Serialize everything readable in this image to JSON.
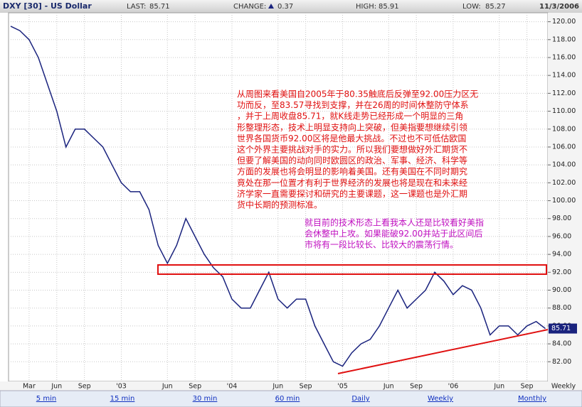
{
  "header": {
    "title": "DXY [30] - US Dollar",
    "stats": [
      {
        "label": "LAST:",
        "value": 85.71
      },
      {
        "label": "CHANGE:",
        "value": 0.37
      },
      {
        "label": "HIGH:",
        "value": 85.91
      },
      {
        "label": "LOW:",
        "value": 85.27
      }
    ],
    "date": "11/3/2006"
  },
  "chart_data": {
    "type": "line",
    "color": "#1a237e",
    "categories": [
      null,
      null,
      "Mar",
      null,
      null,
      "Jun",
      null,
      null,
      "Sep",
      null,
      null,
      null,
      "'03",
      null,
      null,
      null,
      null,
      "Jun",
      null,
      null,
      "Sep",
      null,
      null,
      null,
      "'04",
      null,
      null,
      null,
      null,
      "Jun",
      null,
      null,
      "Sep",
      null,
      null,
      null,
      "'05",
      null,
      null,
      null,
      null,
      "Jun",
      null,
      null,
      "Sep",
      null,
      null,
      null,
      "'06",
      null,
      null,
      null,
      null,
      "Jun",
      null,
      null,
      "Sep",
      null,
      null
    ],
    "values": [
      119.5,
      119,
      118,
      116,
      113,
      110,
      106,
      108,
      108,
      107,
      106,
      104,
      102,
      101,
      101,
      99,
      95,
      93,
      95,
      98,
      96,
      94,
      92.5,
      91.5,
      89,
      88,
      88,
      90,
      92,
      89,
      88,
      89,
      89,
      86,
      84,
      82,
      81.5,
      83,
      84,
      84.5,
      86,
      88,
      90,
      88,
      89,
      90,
      92,
      91,
      89.5,
      90.5,
      90,
      88,
      85,
      86,
      86,
      85,
      86,
      86.5,
      85.71
    ],
    "ylim": [
      79.8,
      121.0
    ],
    "yticks": [
      {
        "value": 82,
        "label": "82.00"
      },
      {
        "value": 84,
        "label": "84.00"
      },
      {
        "value": 86,
        "label": "86.00"
      },
      {
        "value": 88,
        "label": "88.00"
      },
      {
        "value": 90,
        "label": "90.00"
      },
      {
        "value": 92,
        "label": "92.00"
      },
      {
        "value": 94,
        "label": "94.00"
      },
      {
        "value": 96,
        "label": "96.00"
      },
      {
        "value": 98,
        "label": "98.00"
      },
      {
        "value": 100,
        "label": "100.00"
      },
      {
        "value": 102,
        "label": "102.00"
      },
      {
        "value": 104,
        "label": "104.00"
      },
      {
        "value": 106,
        "label": "106.00"
      },
      {
        "value": 108,
        "label": "108.00"
      },
      {
        "value": 110,
        "label": "110.00"
      },
      {
        "value": 112,
        "label": "112.00"
      },
      {
        "value": 114,
        "label": "114.00"
      },
      {
        "value": 116,
        "label": "116.00"
      },
      {
        "value": 118,
        "label": "118.00"
      },
      {
        "value": 120,
        "label": "120.00"
      }
    ],
    "grid": true,
    "period_label": "Weekly",
    "annotations": {
      "red": [
        "从周图来看美国自2005年于80.35触底后反弹至92.00压力区无",
        "功而反，至83.57寻找到支撑，并在26周的时间休整防守体系",
        "，并于上周收盘85.71，就K线走势已经形成一个明显的三角",
        "形整理形态，技术上明显支持向上突破，但美指要想继续引领",
        "世界各国货币92.00区将是他最大挑战。不过也不可低估欧国",
        "这个外界主要挑战对手的实力。所以我们要想做好外汇期货不",
        "但要了解美国的动向同时欧圆区的政治、军事、经济、科学等",
        "方面的发展也将会明显的影响着美国。还有美国在不同时期究",
        "竟处在那一位置才有利于世界经济的发展也将是现在和未来经",
        "济学家一直需要探讨和研究的主要课题，这一课题也是外汇期",
        "货中长期的预测标准。"
      ],
      "purple": [
        "就目前的技术形态上看我本人还是比较看好美指",
        "会休整中上攻。如果能破92.00并站于此区间后",
        "市将有一段比较长、比较大的震荡行情。"
      ]
    }
  },
  "links": [
    "5 min",
    "15 min",
    "30 min",
    "60 min",
    "Daily",
    "Weekly",
    "Monthly"
  ]
}
